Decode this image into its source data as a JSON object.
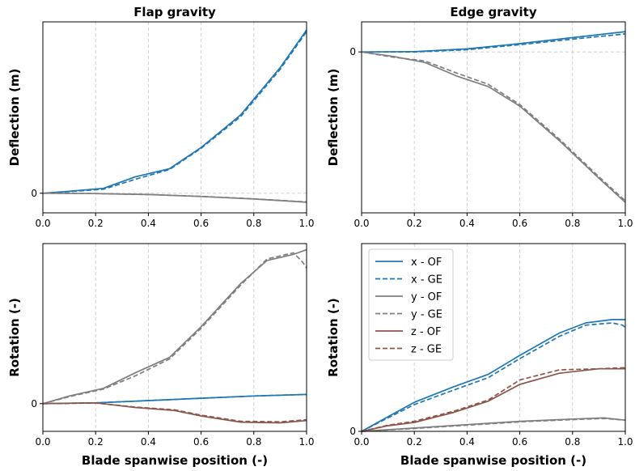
{
  "colors": {
    "x": "#1f77b4",
    "y": "#7f7f7f",
    "z": "#8c564b",
    "grid": "#c8c8c8",
    "axis": "#000000"
  },
  "chart_data": [
    {
      "type": "line",
      "title": "Flap gravity",
      "xlabel": "",
      "ylabel": "Deflection (m)",
      "xlim": [
        0.0,
        1.0
      ],
      "ylim": [
        -0.12,
        1.05
      ],
      "x_ticks": [
        "0.0",
        "0.2",
        "0.4",
        "0.6",
        "0.8",
        "1.0"
      ],
      "y_ticks": [
        {
          "value": 0,
          "label": "0"
        }
      ],
      "grid": "vertical dashed + dashed line at y=0",
      "series": [
        {
          "name": "x - OF",
          "var": "x",
          "dash": false,
          "x": [
            0.0,
            0.1,
            0.23,
            0.35,
            0.48,
            0.6,
            0.75,
            0.9,
            1.0
          ],
          "y": [
            0.0,
            0.012,
            0.03,
            0.1,
            0.15,
            0.28,
            0.48,
            0.77,
            1.0
          ]
        },
        {
          "name": "x - GE",
          "var": "x",
          "dash": true,
          "x": [
            0.0,
            0.1,
            0.23,
            0.35,
            0.48,
            0.6,
            0.75,
            0.9,
            1.0
          ],
          "y": [
            0.0,
            0.01,
            0.025,
            0.085,
            0.145,
            0.275,
            0.47,
            0.76,
            0.99
          ]
        },
        {
          "name": "y - OF",
          "var": "y",
          "dash": false,
          "x": [
            0.0,
            0.2,
            0.4,
            0.6,
            0.8,
            1.0
          ],
          "y": [
            0.0,
            -0.002,
            -0.008,
            -0.02,
            -0.035,
            -0.055
          ]
        },
        {
          "name": "y - GE",
          "var": "y",
          "dash": true,
          "x": [
            0.0,
            0.2,
            0.4,
            0.6,
            0.8,
            1.0
          ],
          "y": [
            0.0,
            -0.002,
            -0.008,
            -0.019,
            -0.034,
            -0.053
          ]
        }
      ]
    },
    {
      "type": "line",
      "title": "Edge gravity",
      "xlabel": "",
      "ylabel": "Deflection (m)",
      "xlim": [
        0.0,
        1.0
      ],
      "ylim": [
        -1.07,
        0.2
      ],
      "x_ticks": [
        "0.0",
        "0.2",
        "0.4",
        "0.6",
        "0.8",
        "1.0"
      ],
      "y_ticks": [
        {
          "value": 0,
          "label": "0"
        }
      ],
      "grid": "vertical dashed + dashed line at y=0",
      "series": [
        {
          "name": "x - OF",
          "var": "x",
          "dash": false,
          "x": [
            0.0,
            0.2,
            0.4,
            0.6,
            0.8,
            1.0
          ],
          "y": [
            0.0,
            0.002,
            0.02,
            0.055,
            0.095,
            0.135
          ]
        },
        {
          "name": "x - GE",
          "var": "x",
          "dash": true,
          "x": [
            0.0,
            0.2,
            0.4,
            0.6,
            0.8,
            1.0
          ],
          "y": [
            0.0,
            0.0,
            0.015,
            0.048,
            0.085,
            0.12
          ]
        },
        {
          "name": "y - OF",
          "var": "y",
          "dash": false,
          "x": [
            0.0,
            0.12,
            0.24,
            0.36,
            0.48,
            0.6,
            0.75,
            0.9,
            1.0
          ],
          "y": [
            0.0,
            -0.03,
            -0.07,
            -0.16,
            -0.23,
            -0.36,
            -0.59,
            -0.84,
            -1.0
          ]
        },
        {
          "name": "y - GE",
          "var": "y",
          "dash": true,
          "x": [
            0.0,
            0.12,
            0.24,
            0.36,
            0.48,
            0.6,
            0.75,
            0.9,
            1.0
          ],
          "y": [
            0.0,
            -0.035,
            -0.06,
            -0.14,
            -0.215,
            -0.35,
            -0.58,
            -0.83,
            -0.99
          ]
        }
      ]
    },
    {
      "type": "line",
      "title": "",
      "xlabel": "Blade spanwise position (-)",
      "ylabel": "Rotation (-)",
      "xlim": [
        0.0,
        1.0
      ],
      "ylim": [
        -0.18,
        1.04
      ],
      "x_ticks": [
        "0.0",
        "0.2",
        "0.4",
        "0.6",
        "0.8",
        "1.0"
      ],
      "y_ticks": [
        {
          "value": 0,
          "label": "0"
        }
      ],
      "grid": "vertical dashed",
      "series": [
        {
          "name": "x - OF",
          "var": "x",
          "dash": false,
          "x": [
            0.0,
            0.2,
            0.4,
            0.6,
            0.8,
            1.0
          ],
          "y": [
            0.0,
            0.005,
            0.02,
            0.035,
            0.05,
            0.06
          ]
        },
        {
          "name": "x - GE",
          "var": "x",
          "dash": true,
          "x": [
            0.0,
            0.2,
            0.4,
            0.6,
            0.8,
            1.0
          ],
          "y": [
            0.0,
            0.005,
            0.02,
            0.035,
            0.05,
            0.06
          ]
        },
        {
          "name": "y - OF",
          "var": "y",
          "dash": false,
          "x": [
            0.0,
            0.1,
            0.23,
            0.35,
            0.48,
            0.6,
            0.75,
            0.85,
            0.95,
            1.0
          ],
          "y": [
            0.0,
            0.05,
            0.1,
            0.2,
            0.3,
            0.5,
            0.78,
            0.93,
            0.97,
            1.0
          ]
        },
        {
          "name": "y - GE",
          "var": "y",
          "dash": true,
          "x": [
            0.0,
            0.1,
            0.23,
            0.35,
            0.48,
            0.6,
            0.75,
            0.85,
            0.95,
            0.985,
            1.0
          ],
          "y": [
            0.0,
            0.045,
            0.095,
            0.18,
            0.29,
            0.49,
            0.77,
            0.94,
            0.98,
            0.92,
            0.88
          ]
        },
        {
          "name": "z - OF",
          "var": "z",
          "dash": false,
          "x": [
            0.0,
            0.1,
            0.2,
            0.35,
            0.5,
            0.6,
            0.75,
            0.9,
            1.0
          ],
          "y": [
            0.0,
            0.003,
            0.005,
            -0.025,
            -0.045,
            -0.08,
            -0.12,
            -0.125,
            -0.11
          ]
        },
        {
          "name": "z - GE",
          "var": "z",
          "dash": true,
          "x": [
            0.0,
            0.1,
            0.2,
            0.35,
            0.5,
            0.6,
            0.75,
            0.9,
            1.0
          ],
          "y": [
            0.0,
            0.002,
            0.004,
            -0.022,
            -0.04,
            -0.075,
            -0.115,
            -0.118,
            -0.105
          ]
        }
      ]
    },
    {
      "type": "line",
      "title": "",
      "xlabel": "Blade spanwise position (-)",
      "ylabel": "Rotation (-)",
      "xlim": [
        0.0,
        1.0
      ],
      "ylim": [
        0.0,
        1.68
      ],
      "x_ticks": [
        "0.0",
        "0.2",
        "0.4",
        "0.6",
        "0.8",
        "1.0"
      ],
      "y_ticks": [
        {
          "value": 0,
          "label": "0"
        }
      ],
      "grid": "vertical dashed",
      "legend": "upper-left",
      "series": [
        {
          "name": "x - OF",
          "var": "x",
          "dash": false,
          "x": [
            0.0,
            0.1,
            0.2,
            0.35,
            0.48,
            0.6,
            0.75,
            0.85,
            0.95,
            1.0
          ],
          "y": [
            0.0,
            0.13,
            0.26,
            0.4,
            0.51,
            0.68,
            0.88,
            0.97,
            1.0,
            1.0
          ]
        },
        {
          "name": "x - GE",
          "var": "x",
          "dash": true,
          "x": [
            0.0,
            0.1,
            0.2,
            0.35,
            0.48,
            0.6,
            0.75,
            0.85,
            0.95,
            0.99,
            1.0
          ],
          "y": [
            0.0,
            0.12,
            0.24,
            0.37,
            0.48,
            0.65,
            0.85,
            0.95,
            0.97,
            0.95,
            0.93
          ]
        },
        {
          "name": "y - OF",
          "var": "y",
          "dash": false,
          "x": [
            0.0,
            0.2,
            0.4,
            0.6,
            0.8,
            0.92,
            1.0
          ],
          "y": [
            0.0,
            0.03,
            0.06,
            0.09,
            0.11,
            0.12,
            0.1
          ]
        },
        {
          "name": "y - GE",
          "var": "y",
          "dash": true,
          "x": [
            0.0,
            0.2,
            0.4,
            0.6,
            0.8,
            0.92,
            1.0
          ],
          "y": [
            0.0,
            0.025,
            0.055,
            0.085,
            0.105,
            0.115,
            0.1
          ]
        },
        {
          "name": "z - OF",
          "var": "z",
          "dash": false,
          "x": [
            0.0,
            0.1,
            0.2,
            0.35,
            0.48,
            0.6,
            0.75,
            0.9,
            1.0
          ],
          "y": [
            0.0,
            0.05,
            0.08,
            0.17,
            0.27,
            0.42,
            0.52,
            0.56,
            0.56
          ]
        },
        {
          "name": "z - GE",
          "var": "z",
          "dash": true,
          "x": [
            0.0,
            0.1,
            0.2,
            0.35,
            0.48,
            0.6,
            0.75,
            0.9,
            1.0
          ],
          "y": [
            0.0,
            0.055,
            0.09,
            0.18,
            0.28,
            0.46,
            0.55,
            0.56,
            0.57
          ]
        }
      ]
    }
  ]
}
